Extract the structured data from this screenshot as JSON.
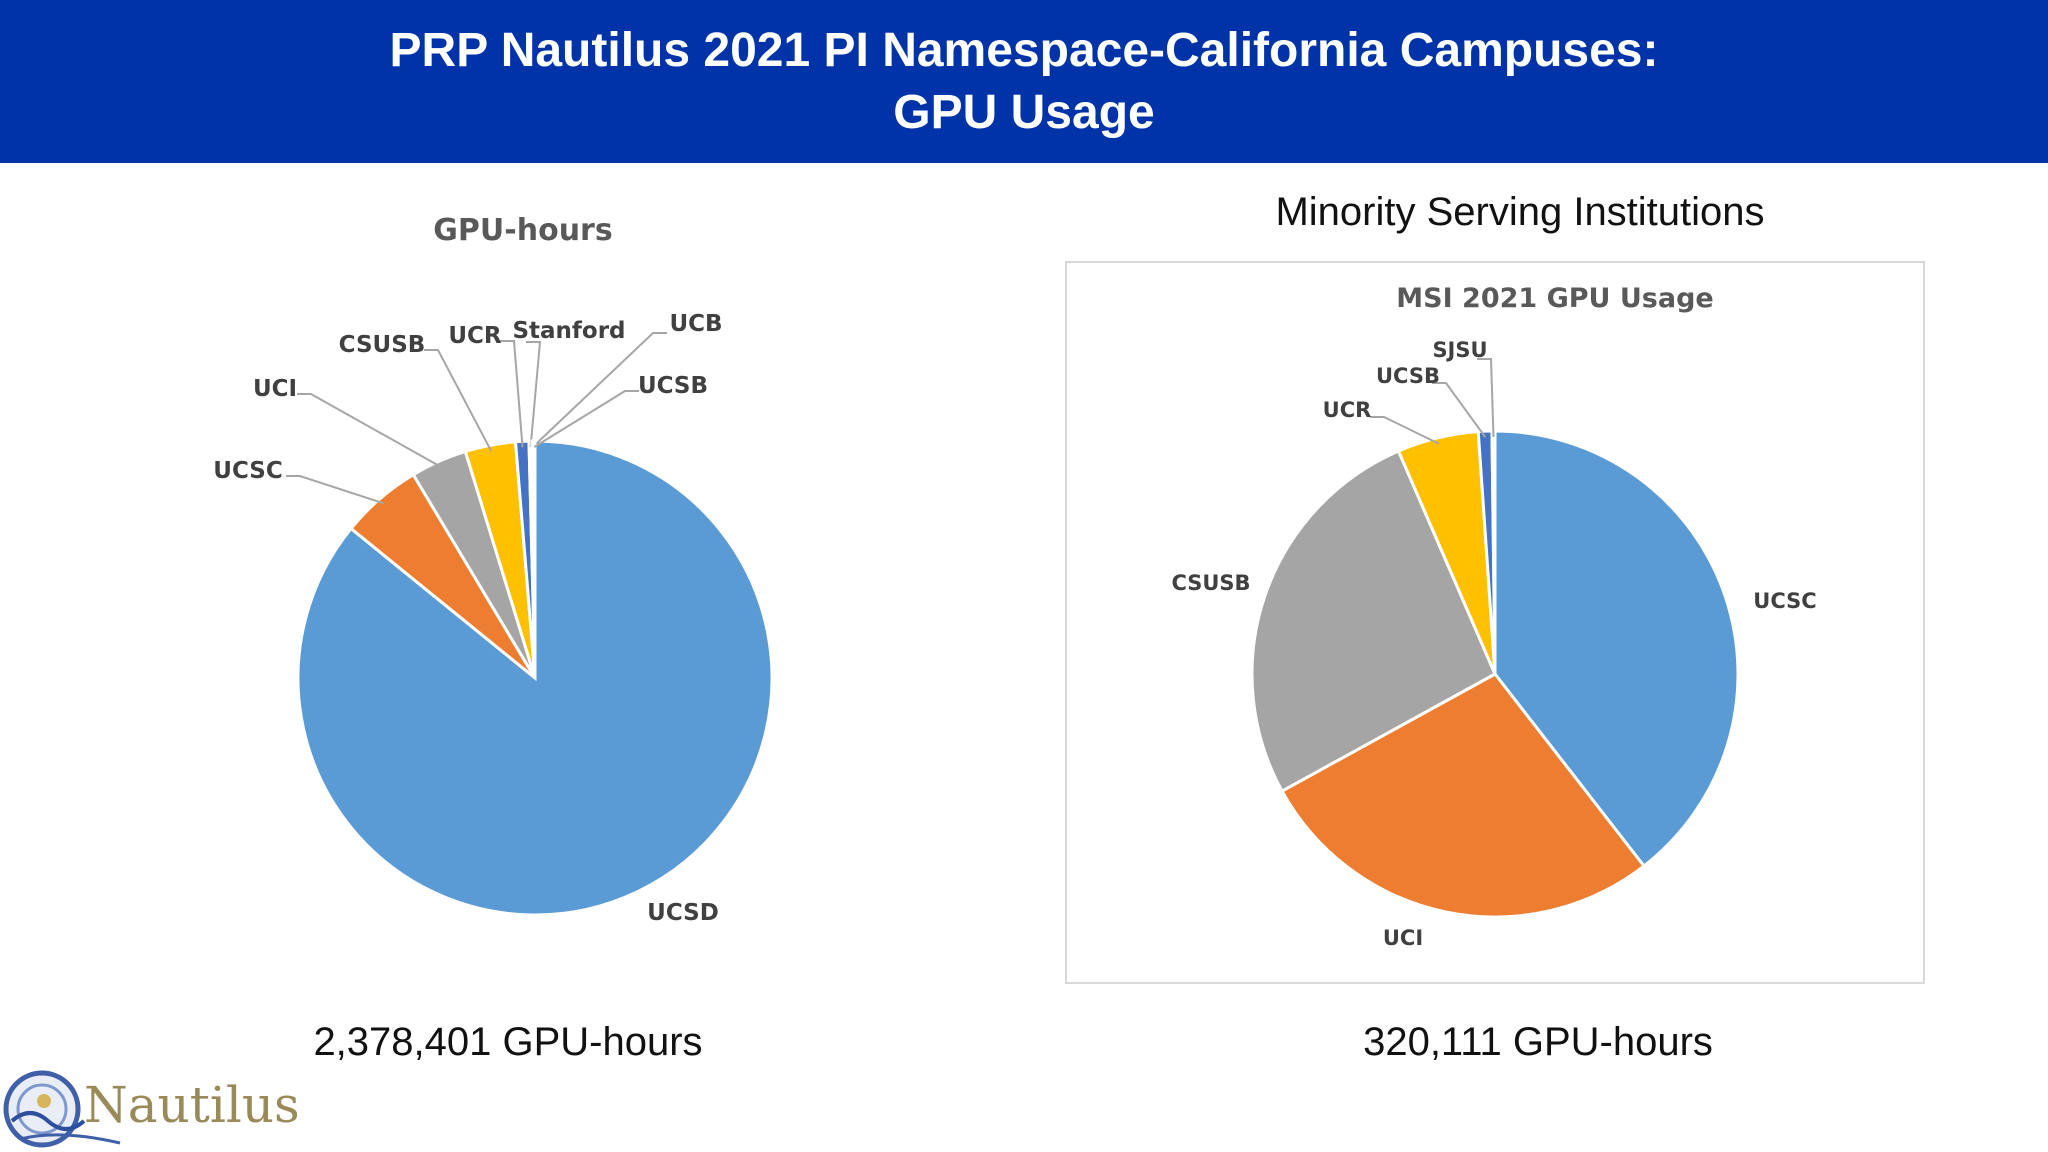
{
  "header": {
    "title_line1": "PRP Nautilus 2021 PI Namespace-California Campuses:",
    "title_line2": "GPU Usage"
  },
  "left": {
    "total": "2,378,401 GPU-hours"
  },
  "right": {
    "heading": "Minority Serving Institutions",
    "total": "320,111 GPU-hours"
  },
  "logo": {
    "text": "Nautilus"
  },
  "colors": {
    "header_bg": "#0033a8",
    "blue": "#5b9bd5",
    "orange": "#ed7d31",
    "gray": "#a5a5a5",
    "yellow": "#ffc000",
    "darkblue": "#4472c4"
  },
  "chart_data": [
    {
      "type": "pie",
      "title": "GPU-hours",
      "slices": [
        {
          "label": "UCSD",
          "value": 85.0,
          "color": "#5b9bd5"
        },
        {
          "label": "UCSC",
          "value": 5.5,
          "color": "#ed7d31"
        },
        {
          "label": "UCI",
          "value": 3.8,
          "color": "#a5a5a5"
        },
        {
          "label": "CSUSB",
          "value": 3.4,
          "color": "#ffc000"
        },
        {
          "label": "UCR",
          "value": 0.9,
          "color": "#4472c4"
        },
        {
          "label": "Stanford",
          "value": 0.2,
          "color": "#70ad47"
        },
        {
          "label": "UCB",
          "value": 0.1,
          "color": "#264478"
        },
        {
          "label": "UCSB",
          "value": 0.1,
          "color": "#9e480e"
        }
      ]
    },
    {
      "type": "pie",
      "title": "MSI 2021 GPU Usage",
      "slices": [
        {
          "label": "UCSC",
          "value": 39.5,
          "color": "#5b9bd5"
        },
        {
          "label": "UCI",
          "value": 27.5,
          "color": "#ed7d31"
        },
        {
          "label": "CSUSB",
          "value": 26.5,
          "color": "#a5a5a5"
        },
        {
          "label": "UCR",
          "value": 5.4,
          "color": "#ffc000"
        },
        {
          "label": "UCSB",
          "value": 0.9,
          "color": "#4472c4"
        },
        {
          "label": "SJSU",
          "value": 0.2,
          "color": "#70ad47"
        }
      ]
    }
  ]
}
